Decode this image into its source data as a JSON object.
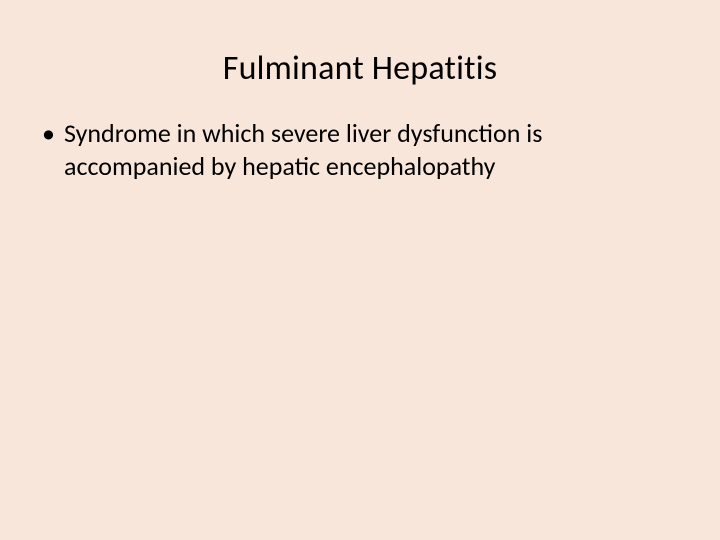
{
  "slide": {
    "title": "Fulminant Hepatitis",
    "bullets": [
      "Syndrome in which severe liver dysfunction is accompanied by hepatic encephalopathy"
    ],
    "background_color": "#f8e6da",
    "text_color": "#000000",
    "title_fontsize": 34,
    "body_fontsize": 26,
    "font_family": "Calibri"
  }
}
